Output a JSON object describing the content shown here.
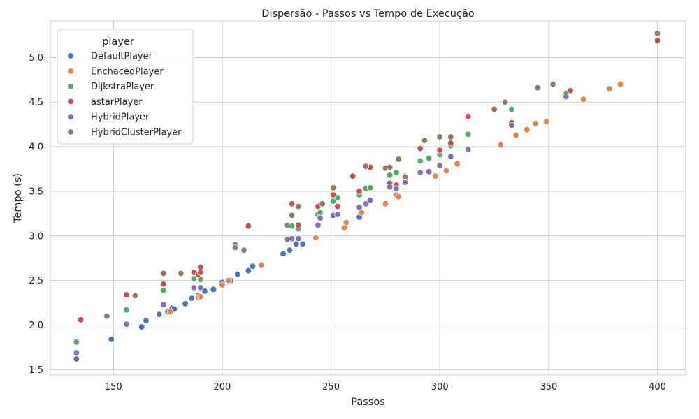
{
  "chart_data": {
    "type": "scatter",
    "title": "Dispersão - Passos vs Tempo de Execução",
    "xlabel": "Passos",
    "ylabel": "Tempo (s)",
    "xlim": [
      121,
      413
    ],
    "ylim": [
      1.44,
      5.41
    ],
    "xticks": [
      150,
      200,
      250,
      300,
      350,
      400
    ],
    "yticks": [
      1.5,
      2.0,
      2.5,
      3.0,
      3.5,
      4.0,
      4.5,
      5.0
    ],
    "grid": true,
    "legend": {
      "title": "player",
      "placement": "top-left"
    },
    "series": [
      {
        "name": "DefaultPlayer",
        "color": "#4c72b0",
        "points": [
          [
            133,
            1.62
          ],
          [
            149,
            1.84
          ],
          [
            163,
            1.98
          ],
          [
            165,
            2.05
          ],
          [
            171,
            2.12
          ],
          [
            175,
            2.15
          ],
          [
            177,
            2.19
          ],
          [
            178,
            2.18
          ],
          [
            183,
            2.24
          ],
          [
            186,
            2.3
          ],
          [
            189,
            2.33
          ],
          [
            192,
            2.38
          ],
          [
            196,
            2.4
          ],
          [
            200,
            2.48
          ],
          [
            204,
            2.5
          ],
          [
            207,
            2.57
          ],
          [
            212,
            2.61
          ],
          [
            214,
            2.66
          ],
          [
            228,
            2.8
          ],
          [
            231,
            2.84
          ],
          [
            234,
            2.91
          ],
          [
            237,
            2.91
          ],
          [
            263,
            3.21
          ]
        ]
      },
      {
        "name": "EnchacedPlayer",
        "color": "#dd8452",
        "points": [
          [
            176,
            2.15
          ],
          [
            189,
            2.31
          ],
          [
            190,
            2.32
          ],
          [
            200,
            2.45
          ],
          [
            203,
            2.5
          ],
          [
            218,
            2.68
          ],
          [
            218,
            2.67
          ],
          [
            243,
            2.98
          ],
          [
            256,
            3.09
          ],
          [
            257,
            3.15
          ],
          [
            264,
            3.26
          ],
          [
            275,
            3.36
          ],
          [
            280,
            3.46
          ],
          [
            281,
            3.44
          ],
          [
            298,
            3.67
          ],
          [
            303,
            3.73
          ],
          [
            308,
            3.81
          ],
          [
            328,
            4.02
          ],
          [
            335,
            4.13
          ],
          [
            340,
            4.19
          ],
          [
            344,
            4.26
          ],
          [
            349,
            4.28
          ],
          [
            366,
            4.53
          ],
          [
            378,
            4.65
          ],
          [
            383,
            4.7
          ]
        ]
      },
      {
        "name": "DijkstraPlayer",
        "color": "#55a868",
        "points": [
          [
            133,
            1.81
          ],
          [
            156,
            2.17
          ],
          [
            173,
            2.39
          ],
          [
            187,
            2.52
          ],
          [
            190,
            2.51
          ],
          [
            230,
            3.12
          ],
          [
            232,
            3.11
          ],
          [
            235,
            3.08
          ],
          [
            244,
            3.24
          ],
          [
            245,
            3.26
          ],
          [
            251,
            3.39
          ],
          [
            253,
            3.43
          ],
          [
            263,
            3.46
          ],
          [
            266,
            3.53
          ],
          [
            268,
            3.54
          ],
          [
            277,
            3.68
          ],
          [
            280,
            3.71
          ],
          [
            284,
            3.67
          ],
          [
            291,
            3.84
          ],
          [
            295,
            3.87
          ],
          [
            300,
            3.91
          ],
          [
            305,
            4.01
          ],
          [
            313,
            4.14
          ],
          [
            333,
            4.42
          ],
          [
            358,
            4.59
          ]
        ]
      },
      {
        "name": "astarPlayer",
        "color": "#c44e52",
        "points": [
          [
            135,
            2.06
          ],
          [
            156,
            2.34
          ],
          [
            173,
            2.46
          ],
          [
            187,
            2.59
          ],
          [
            189,
            2.57
          ],
          [
            190,
            2.59
          ],
          [
            190,
            2.65
          ],
          [
            212,
            3.11
          ],
          [
            232,
            3.36
          ],
          [
            235,
            3.12
          ],
          [
            244,
            3.33
          ],
          [
            251,
            3.46
          ],
          [
            253,
            3.33
          ],
          [
            260,
            3.67
          ],
          [
            263,
            3.5
          ],
          [
            268,
            3.77
          ],
          [
            277,
            3.59
          ],
          [
            280,
            3.57
          ],
          [
            284,
            3.64
          ],
          [
            291,
            3.98
          ],
          [
            300,
            3.96
          ],
          [
            305,
            4.04
          ],
          [
            313,
            4.34
          ],
          [
            333,
            4.27
          ],
          [
            360,
            4.63
          ],
          [
            400,
            5.19
          ]
        ]
      },
      {
        "name": "HybridPlayer",
        "color": "#8172b3",
        "points": [
          [
            133,
            1.69
          ],
          [
            156,
            2.01
          ],
          [
            173,
            2.23
          ],
          [
            187,
            2.42
          ],
          [
            190,
            2.42
          ],
          [
            230,
            2.96
          ],
          [
            232,
            2.97
          ],
          [
            235,
            2.97
          ],
          [
            244,
            3.12
          ],
          [
            245,
            3.2
          ],
          [
            251,
            3.23
          ],
          [
            253,
            3.24
          ],
          [
            263,
            3.32
          ],
          [
            266,
            3.36
          ],
          [
            268,
            3.4
          ],
          [
            277,
            3.55
          ],
          [
            280,
            3.53
          ],
          [
            284,
            3.6
          ],
          [
            291,
            3.71
          ],
          [
            295,
            3.72
          ],
          [
            300,
            3.79
          ],
          [
            305,
            3.89
          ],
          [
            313,
            3.97
          ],
          [
            333,
            4.24
          ],
          [
            358,
            4.56
          ]
        ]
      },
      {
        "name": "HybridClusterPlayer",
        "color": "#937860",
        "points": [
          [
            147,
            2.1
          ],
          [
            160,
            2.33
          ],
          [
            173,
            2.58
          ],
          [
            181,
            2.58
          ],
          [
            206,
            2.9
          ],
          [
            206,
            2.87
          ],
          [
            210,
            2.84
          ],
          [
            232,
            3.23
          ],
          [
            235,
            3.33
          ],
          [
            246,
            3.36
          ],
          [
            251,
            3.54
          ],
          [
            266,
            3.78
          ],
          [
            275,
            3.76
          ],
          [
            277,
            3.77
          ],
          [
            281,
            3.86
          ],
          [
            284,
            3.66
          ],
          [
            293,
            4.07
          ],
          [
            300,
            4.11
          ],
          [
            305,
            4.11
          ],
          [
            325,
            4.42
          ],
          [
            330,
            4.5
          ],
          [
            345,
            4.66
          ],
          [
            352,
            4.7
          ],
          [
            400,
            5.27
          ]
        ]
      }
    ]
  }
}
